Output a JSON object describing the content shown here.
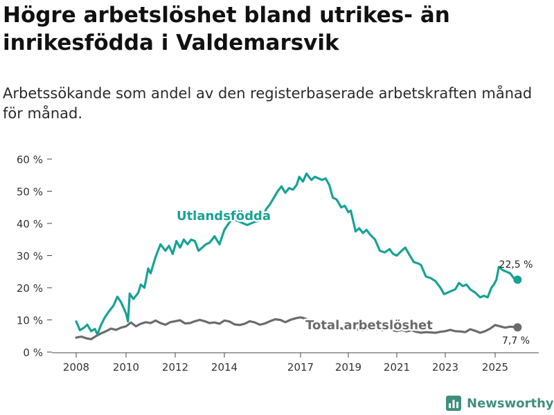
{
  "page": {
    "title": "Högre arbetslöshet bland utrikes- än inrikesfödda i Valdemarsvik",
    "subtitle": "Arbetssökande som andel av den registerbaserade arbetskraften månad för månad.",
    "brand": "Newsworthy"
  },
  "colors": {
    "foreign_born": "#16a295",
    "total": "#6b6b6b",
    "axis": "#444444",
    "grid": "#e6e6e6",
    "brand": "#3f8f80"
  },
  "chart_data": {
    "type": "line",
    "title": "Högre arbetslöshet bland utrikes- än inrikesfödda i Valdemarsvik",
    "subtitle": "Arbetssökande som andel av den registerbaserade arbetskraften månad för månad.",
    "xlabel": "",
    "ylabel": "",
    "x_unit": "year (decimal)",
    "xlim": [
      2007.5,
      2026.8
    ],
    "ylim": [
      0,
      60
    ],
    "grid": false,
    "y_ticks": [
      0,
      10,
      20,
      30,
      40,
      50,
      60
    ],
    "y_tick_labels": [
      "0 %",
      "10 %",
      "20 %",
      "30 %",
      "40 %",
      "50 %",
      "60 %"
    ],
    "x_ticks": [
      2008,
      2010,
      2012,
      2014,
      2017,
      2019,
      2021,
      2023,
      2025
    ],
    "x_tick_labels": [
      "2008",
      "2010",
      "2012",
      "2014",
      "2017",
      "2019",
      "2021",
      "2023",
      "2025"
    ],
    "series": [
      {
        "name": "Utlandsfödda",
        "color_key": "foreign_born",
        "label": "Utlandsfödda",
        "end_label": "22,5 %",
        "x": [
          2008.0,
          2008.15,
          2008.3,
          2008.45,
          2008.6,
          2008.75,
          2008.85,
          2009.0,
          2009.15,
          2009.3,
          2009.5,
          2009.65,
          2009.8,
          2010.0,
          2010.08,
          2010.15,
          2010.3,
          2010.5,
          2010.6,
          2010.75,
          2010.9,
          2011.0,
          2011.2,
          2011.4,
          2011.6,
          2011.75,
          2011.9,
          2012.05,
          2012.2,
          2012.35,
          2012.5,
          2012.65,
          2012.8,
          2012.95,
          2013.1,
          2013.25,
          2013.4,
          2013.6,
          2013.8,
          2014.0,
          2014.3,
          2014.6,
          2014.9,
          2015.2,
          2015.45,
          2015.65,
          2015.8,
          2015.95,
          2016.1,
          2016.25,
          2016.4,
          2016.55,
          2016.7,
          2016.85,
          2016.95,
          2017.1,
          2017.25,
          2017.45,
          2017.6,
          2017.75,
          2017.9,
          2018.05,
          2018.2,
          2018.35,
          2018.5,
          2018.7,
          2018.85,
          2019.0,
          2019.1,
          2019.3,
          2019.45,
          2019.6,
          2019.75,
          2019.9,
          2020.1,
          2020.3,
          2020.5,
          2020.7,
          2020.85,
          2021.0,
          2021.2,
          2021.35,
          2021.5,
          2021.7,
          2021.9,
          2022.0,
          2022.2,
          2022.4,
          2022.6,
          2022.8,
          2022.95,
          2023.1,
          2023.25,
          2023.4,
          2023.55,
          2023.7,
          2023.85,
          2024.0,
          2024.2,
          2024.4,
          2024.55,
          2024.7,
          2024.85,
          2024.95,
          2025.05,
          2025.15,
          2025.3,
          2025.45,
          2025.6,
          2025.75,
          2025.9
        ],
        "y": [
          9.5,
          6.8,
          7.5,
          8.5,
          6.5,
          7.2,
          5.5,
          8.5,
          10.8,
          12.5,
          14.5,
          17.2,
          15.5,
          12.0,
          9.5,
          18.2,
          16.5,
          18.5,
          21.0,
          20.0,
          26.0,
          24.5,
          29.5,
          33.5,
          31.5,
          33.0,
          30.5,
          34.5,
          32.5,
          35.0,
          33.5,
          35.0,
          34.5,
          31.5,
          32.5,
          33.5,
          34.0,
          36.0,
          33.5,
          38.0,
          41.5,
          40.5,
          39.5,
          40.5,
          41.0,
          44.5,
          46.0,
          48.0,
          50.0,
          51.5,
          49.5,
          51.0,
          50.5,
          52.0,
          54.5,
          53.0,
          55.5,
          53.5,
          54.5,
          54.0,
          53.5,
          54.0,
          52.0,
          48.0,
          47.5,
          45.0,
          45.5,
          43.5,
          44.0,
          37.5,
          38.5,
          37.0,
          38.0,
          36.5,
          35.0,
          31.5,
          31.0,
          32.0,
          30.5,
          30.0,
          31.5,
          32.5,
          30.5,
          28.0,
          27.5,
          27.0,
          23.5,
          23.0,
          22.0,
          20.0,
          18.0,
          18.5,
          19.0,
          19.5,
          21.5,
          20.5,
          21.0,
          19.5,
          18.5,
          17.0,
          17.5,
          17.0,
          20.0,
          21.0,
          22.5,
          26.5,
          25.5,
          25.0,
          24.5,
          23.0,
          22.5
        ]
      },
      {
        "name": "Total arbetslöshet",
        "color_key": "total",
        "label": "Total arbetslöshet",
        "end_label": "7,7 %",
        "x": [
          2008.0,
          2008.2,
          2008.4,
          2008.6,
          2008.8,
          2009.0,
          2009.2,
          2009.4,
          2009.6,
          2009.8,
          2010.0,
          2010.2,
          2010.4,
          2010.6,
          2010.8,
          2011.0,
          2011.2,
          2011.4,
          2011.6,
          2011.8,
          2012.0,
          2012.2,
          2012.4,
          2012.6,
          2012.8,
          2013.0,
          2013.2,
          2013.4,
          2013.6,
          2013.8,
          2014.0,
          2014.2,
          2014.4,
          2014.6,
          2014.8,
          2015.0,
          2015.2,
          2015.4,
          2015.6,
          2015.8,
          2016.0,
          2016.2,
          2016.4,
          2016.6,
          2016.8,
          2017.0,
          2017.2,
          2017.4,
          2017.6,
          2017.8,
          2018.0,
          2018.2,
          2018.4,
          2018.6,
          2018.8,
          2019.0,
          2019.2,
          2019.4,
          2019.6,
          2019.8,
          2020.0,
          2020.2,
          2020.4,
          2020.6,
          2020.8,
          2021.0,
          2021.2,
          2021.4,
          2021.6,
          2021.8,
          2022.0,
          2022.2,
          2022.4,
          2022.6,
          2022.8,
          2023.0,
          2023.2,
          2023.4,
          2023.6,
          2023.8,
          2024.0,
          2024.2,
          2024.4,
          2024.6,
          2024.8,
          2025.0,
          2025.2,
          2025.4,
          2025.6,
          2025.9
        ],
        "y": [
          4.5,
          4.8,
          4.3,
          4.0,
          5.0,
          5.8,
          6.5,
          7.3,
          6.9,
          7.6,
          8.0,
          9.2,
          8.0,
          8.8,
          9.3,
          9.0,
          9.8,
          9.0,
          8.5,
          9.3,
          9.6,
          9.9,
          8.9,
          9.0,
          9.6,
          10.0,
          9.6,
          9.0,
          9.2,
          8.8,
          9.8,
          9.5,
          8.6,
          8.4,
          8.8,
          9.6,
          9.2,
          8.5,
          8.9,
          9.6,
          10.2,
          10.0,
          9.3,
          10.0,
          10.5,
          10.8,
          10.4,
          9.8,
          9.5,
          9.0,
          8.8,
          8.5,
          8.0,
          7.5,
          7.2,
          7.0,
          7.4,
          7.0,
          6.8,
          7.2,
          7.5,
          7.0,
          6.8,
          7.2,
          6.9,
          6.5,
          6.9,
          6.4,
          6.8,
          6.3,
          6.0,
          6.2,
          6.1,
          6.0,
          6.3,
          6.5,
          6.9,
          6.5,
          6.4,
          6.2,
          7.1,
          6.6,
          6.0,
          6.5,
          7.3,
          8.4,
          8.0,
          7.6,
          7.9,
          7.7
        ]
      }
    ]
  }
}
